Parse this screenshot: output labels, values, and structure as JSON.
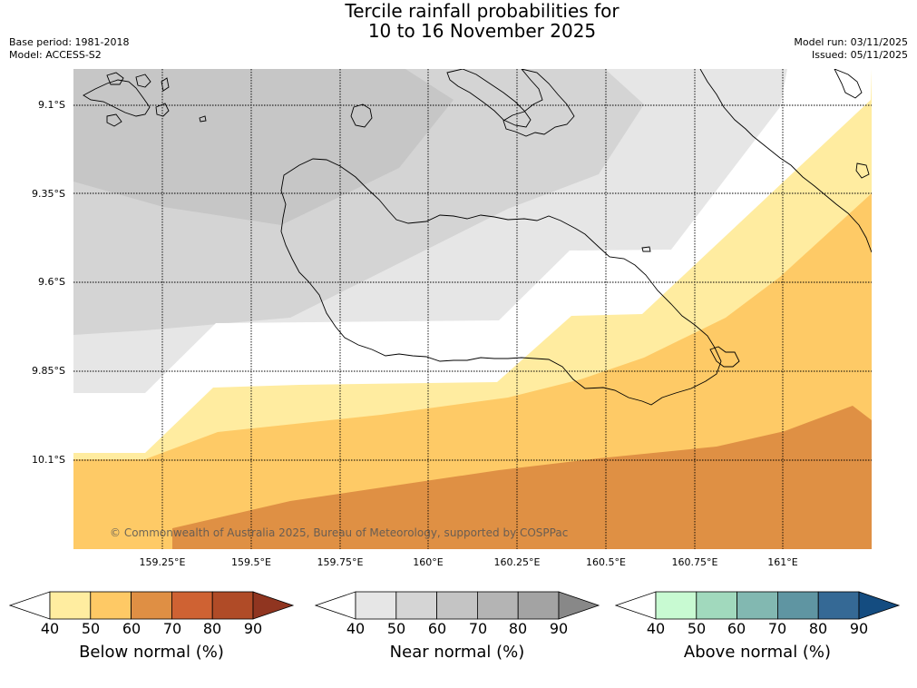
{
  "title": {
    "line1": "Tercile rainfall probabilities for",
    "line2": "10 to 16 November 2025"
  },
  "meta": {
    "base_period": "Base period: 1981-2018",
    "model": "Model: ACCESS-S2",
    "model_run": "Model run: 03/11/2025",
    "issued": "Issued: 05/11/2025"
  },
  "axes": {
    "lat_labels": [
      "9.1°S",
      "9.35°S",
      "9.6°S",
      "9.85°S",
      "10.1°S"
    ],
    "lon_labels": [
      "159.25°E",
      "159.5°E",
      "159.75°E",
      "160°E",
      "160.25°E",
      "160.5°E",
      "160.75°E",
      "161°E"
    ]
  },
  "copyright": "© Commonwealth of Australia 2025, Bureau of Meteorology, supported by COSPPac",
  "colorbars": [
    {
      "label": "Below normal (%)",
      "ticks": [
        "40",
        "50",
        "60",
        "70",
        "80",
        "90"
      ],
      "colors": [
        "#ffffff",
        "#ffeda0",
        "#fec965",
        "#df8f44",
        "#cf6233",
        "#b04b27",
        "#903520"
      ]
    },
    {
      "label": "Near normal (%)",
      "ticks": [
        "40",
        "50",
        "60",
        "70",
        "80",
        "90"
      ],
      "colors": [
        "#ffffff",
        "#e6e6e6",
        "#d5d5d5",
        "#c4c4c4",
        "#b4b4b4",
        "#a3a3a3",
        "#888888"
      ]
    },
    {
      "label": "Above normal (%)",
      "ticks": [
        "40",
        "50",
        "60",
        "70",
        "80",
        "90"
      ],
      "colors": [
        "#ffffff",
        "#c8fad2",
        "#a1d9bd",
        "#82b8b1",
        "#5f95a2",
        "#356995",
        "#144c80"
      ]
    }
  ],
  "zone_colors": {
    "near60": "#c6c6c6",
    "near50": "#d4d4d4",
    "near40": "#e6e6e6",
    "white": "#ffffff",
    "below40": "#ffeca0",
    "below50": "#feca66",
    "below60": "#df9044"
  }
}
